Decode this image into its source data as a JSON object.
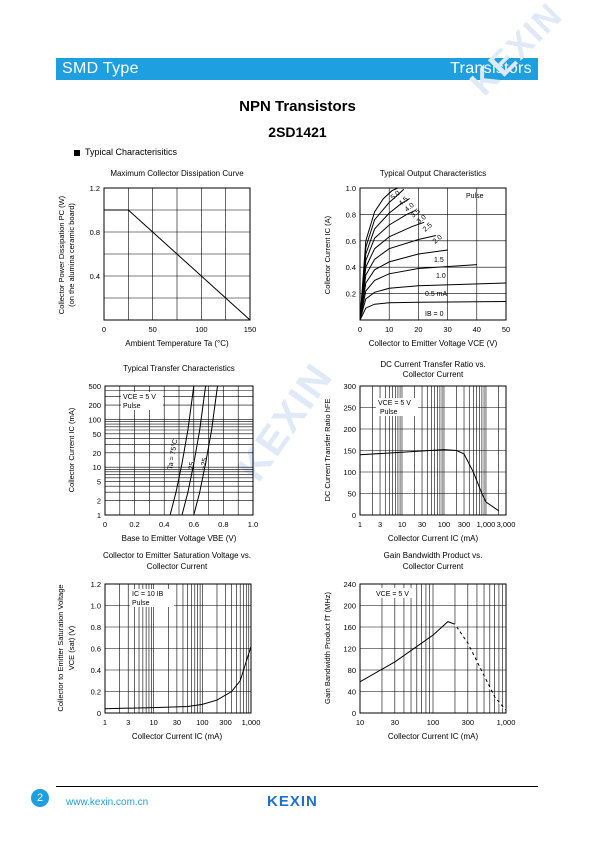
{
  "header": {
    "left": "SMD Type",
    "right": "Transistors"
  },
  "title": "NPN  Transistors",
  "part": "2SD1421",
  "section": "Typical  Characterisitics",
  "watermark": "KEXIN",
  "colors": {
    "accent": "#1e9fe0",
    "logo": "#1e6fd0"
  },
  "footer": {
    "page": "2",
    "url": "www.kexin.com.cn",
    "logo": "KEXIN"
  },
  "charts": {
    "pd": {
      "title": "Maximum Collector Dissipation Curve",
      "xlabel": "Ambient Temperature  Ta  (°C)",
      "ylabel1": "Collector Power Dissipation  PC (W)",
      "ylabel2": "(on the alumina ceramic board)",
      "xticks": [
        "0",
        "50",
        "100",
        "150"
      ],
      "yticks": [
        "0.4",
        "0.8",
        "1.2"
      ]
    },
    "out": {
      "title": "Typical Output Characteristics",
      "xlabel": "Collector to Emitter Voltage  VCE  (V)",
      "ylabel": "Collector Current  IC  (A)",
      "xticks": [
        "0",
        "10",
        "20",
        "30",
        "40",
        "50"
      ],
      "yticks": [
        "0.2",
        "0.4",
        "0.6",
        "0.8",
        "1.0"
      ],
      "annot": "Pulse",
      "curve_labels": [
        "5.0",
        "4.5",
        "4.0",
        "3.5",
        "3.0",
        "2.5",
        "2.0",
        "1.5",
        "1.0",
        "0.5 mA",
        "IB = 0"
      ]
    },
    "transfer": {
      "title": "Typical Transfer Characteristics",
      "xlabel": "Base to Emitter Voltage  VBE  (V)",
      "ylabel": "Collector Current  IC  (mA)",
      "xticks": [
        "0",
        "0.2",
        "0.4",
        "0.6",
        "0.8",
        "1.0"
      ],
      "yticks": [
        "1",
        "2",
        "5",
        "10",
        "20",
        "50",
        "100",
        "200",
        "500"
      ],
      "annot1": "VCE = 5 V",
      "annot2": "Pulse",
      "curve_labels": [
        "Ta = 75°C",
        "25",
        "−25"
      ]
    },
    "hfe": {
      "title1": "DC Current Transfer Ratio vs.",
      "title2": "Collector Current",
      "xlabel": "Collector Current  IC  (mA)",
      "ylabel": "DC Current Transfer Ratio  hFE",
      "xticks": [
        "1",
        "3",
        "10",
        "30",
        "100",
        "300",
        "1,000",
        "3,000"
      ],
      "yticks": [
        "0",
        "50",
        "100",
        "150",
        "200",
        "250",
        "300"
      ],
      "annot1": "VCE = 5 V",
      "annot2": "Pulse"
    },
    "vcesat": {
      "title1": "Collector to Emitter Saturation Voltage vs.",
      "title2": "Collector Current",
      "xlabel": "Collector Current  IC  (mA)",
      "ylabel1": "Collector to Emitter Saturation Voltage",
      "ylabel2": "VCE (sat)  (V)",
      "xticks": [
        "1",
        "3",
        "10",
        "30",
        "100",
        "300",
        "1,000"
      ],
      "yticks": [
        "0",
        "0.2",
        "0.4",
        "0.6",
        "0.8",
        "1.0",
        "1.2"
      ],
      "annot1": "IC = 10 IB",
      "annot2": "Pulse"
    },
    "ft": {
      "title1": "Gain Bandwidth Product vs.",
      "title2": "Collector Current",
      "xlabel": "Collector Current  IC  (mA)",
      "ylabel": "Gain Bandwidth Product  fT  (MHz)",
      "xticks": [
        "10",
        "30",
        "100",
        "300",
        "1,000"
      ],
      "yticks": [
        "0",
        "40",
        "80",
        "120",
        "160",
        "200",
        "240"
      ],
      "annot": "VCE = 5 V"
    }
  },
  "chart_data": [
    {
      "type": "line",
      "title": "Maximum Collector Dissipation Curve",
      "xlabel": "Ambient Temperature  Ta  (°C)",
      "ylabel": "Collector Power Dissipation  PC (W)",
      "xlim": [
        0,
        150
      ],
      "ylim": [
        0,
        1.2
      ],
      "series": [
        {
          "x": [
            0,
            25,
            150
          ],
          "y": [
            1.0,
            1.0,
            0
          ]
        }
      ]
    },
    {
      "type": "line",
      "title": "Typical Output Characteristics",
      "xlabel": "Collector to Emitter Voltage  VCE  (V)",
      "ylabel": "Collector Current  IC  (A)",
      "xlim": [
        0,
        50
      ],
      "ylim": [
        0,
        1.0
      ],
      "series": [
        {
          "name": "0.5 mA",
          "x": [
            0,
            2,
            5,
            10,
            20,
            50
          ],
          "y": [
            0,
            0.09,
            0.12,
            0.13,
            0.135,
            0.14
          ]
        },
        {
          "name": "1.0",
          "x": [
            0,
            2,
            5,
            10,
            20,
            50
          ],
          "y": [
            0,
            0.16,
            0.21,
            0.24,
            0.26,
            0.28
          ]
        },
        {
          "name": "1.5",
          "x": [
            0,
            2,
            5,
            10,
            20,
            40
          ],
          "y": [
            0,
            0.22,
            0.3,
            0.35,
            0.39,
            0.42
          ]
        },
        {
          "name": "2.0",
          "x": [
            0,
            2,
            5,
            10,
            20,
            30
          ],
          "y": [
            0,
            0.28,
            0.38,
            0.44,
            0.5,
            0.53
          ]
        },
        {
          "name": "2.5",
          "x": [
            0,
            2,
            5,
            10,
            20,
            26
          ],
          "y": [
            0,
            0.34,
            0.46,
            0.54,
            0.61,
            0.64
          ]
        },
        {
          "name": "3.0",
          "x": [
            0,
            2,
            5,
            10,
            18,
            22
          ],
          "y": [
            0,
            0.4,
            0.54,
            0.63,
            0.71,
            0.74
          ]
        },
        {
          "name": "3.5",
          "x": [
            0,
            2,
            5,
            10,
            16,
            19
          ],
          "y": [
            0,
            0.45,
            0.62,
            0.72,
            0.8,
            0.83
          ]
        },
        {
          "name": "4.0",
          "x": [
            0,
            2,
            5,
            10,
            14,
            17
          ],
          "y": [
            0,
            0.5,
            0.69,
            0.81,
            0.88,
            0.92
          ]
        },
        {
          "name": "4.5",
          "x": [
            0,
            2,
            5,
            10,
            13,
            15
          ],
          "y": [
            0,
            0.55,
            0.76,
            0.89,
            0.95,
            0.99
          ]
        },
        {
          "name": "5.0",
          "x": [
            0,
            2,
            5,
            8,
            11,
            13
          ],
          "y": [
            0,
            0.6,
            0.82,
            0.92,
            0.98,
            1.0
          ]
        }
      ]
    },
    {
      "type": "line",
      "title": "Typical Transfer Characteristics",
      "xlabel": "Base to Emitter Voltage  VBE  (V)",
      "ylabel": "Collector Current  IC  (mA)",
      "xlim": [
        0,
        1.0
      ],
      "ylim": [
        1,
        500
      ],
      "yscale": "log",
      "series": [
        {
          "name": "Ta = 75°C",
          "x": [
            0.44,
            0.48,
            0.52,
            0.56,
            0.6
          ],
          "y": [
            1,
            3,
            12,
            60,
            500
          ]
        },
        {
          "name": "25",
          "x": [
            0.52,
            0.56,
            0.6,
            0.64,
            0.68
          ],
          "y": [
            1,
            3,
            12,
            60,
            500
          ]
        },
        {
          "name": "−25",
          "x": [
            0.6,
            0.64,
            0.68,
            0.72,
            0.76
          ],
          "y": [
            1,
            3,
            12,
            60,
            500
          ]
        }
      ]
    },
    {
      "type": "line",
      "title": "DC Current Transfer Ratio vs. Collector Current",
      "xlabel": "Collector Current  IC  (mA)",
      "ylabel": "DC Current Transfer Ratio  hFE",
      "xlim": [
        1,
        3000
      ],
      "ylim": [
        0,
        300
      ],
      "xscale": "log",
      "series": [
        {
          "x": [
            1,
            10,
            100,
            200,
            300,
            500,
            800,
            1000,
            2000
          ],
          "y": [
            140,
            146,
            152,
            150,
            142,
            100,
            50,
            30,
            10
          ]
        }
      ]
    },
    {
      "type": "line",
      "title": "Collector to Emitter Saturation Voltage vs. Collector Current",
      "xlabel": "Collector Current  IC  (mA)",
      "ylabel": "Collector to Emitter Saturation Voltage  VCE (sat)  (V)",
      "xlim": [
        1,
        1000
      ],
      "ylim": [
        0,
        1.2
      ],
      "xscale": "log",
      "series": [
        {
          "x": [
            1,
            10,
            50,
            100,
            200,
            400,
            600,
            1000
          ],
          "y": [
            0.04,
            0.05,
            0.06,
            0.08,
            0.12,
            0.2,
            0.3,
            0.62
          ]
        }
      ]
    },
    {
      "type": "line",
      "title": "Gain Bandwidth Product vs. Collector Current",
      "xlabel": "Collector Current  IC  (mA)",
      "ylabel": "Gain Bandwidth Product  fT  (MHz)",
      "xlim": [
        10,
        1000
      ],
      "ylim": [
        0,
        240
      ],
      "xscale": "log",
      "series": [
        {
          "x": [
            10,
            30,
            100,
            160,
            200,
            300,
            500,
            700,
            1000
          ],
          "y": [
            58,
            95,
            145,
            170,
            165,
            130,
            70,
            30,
            5
          ]
        }
      ]
    }
  ]
}
